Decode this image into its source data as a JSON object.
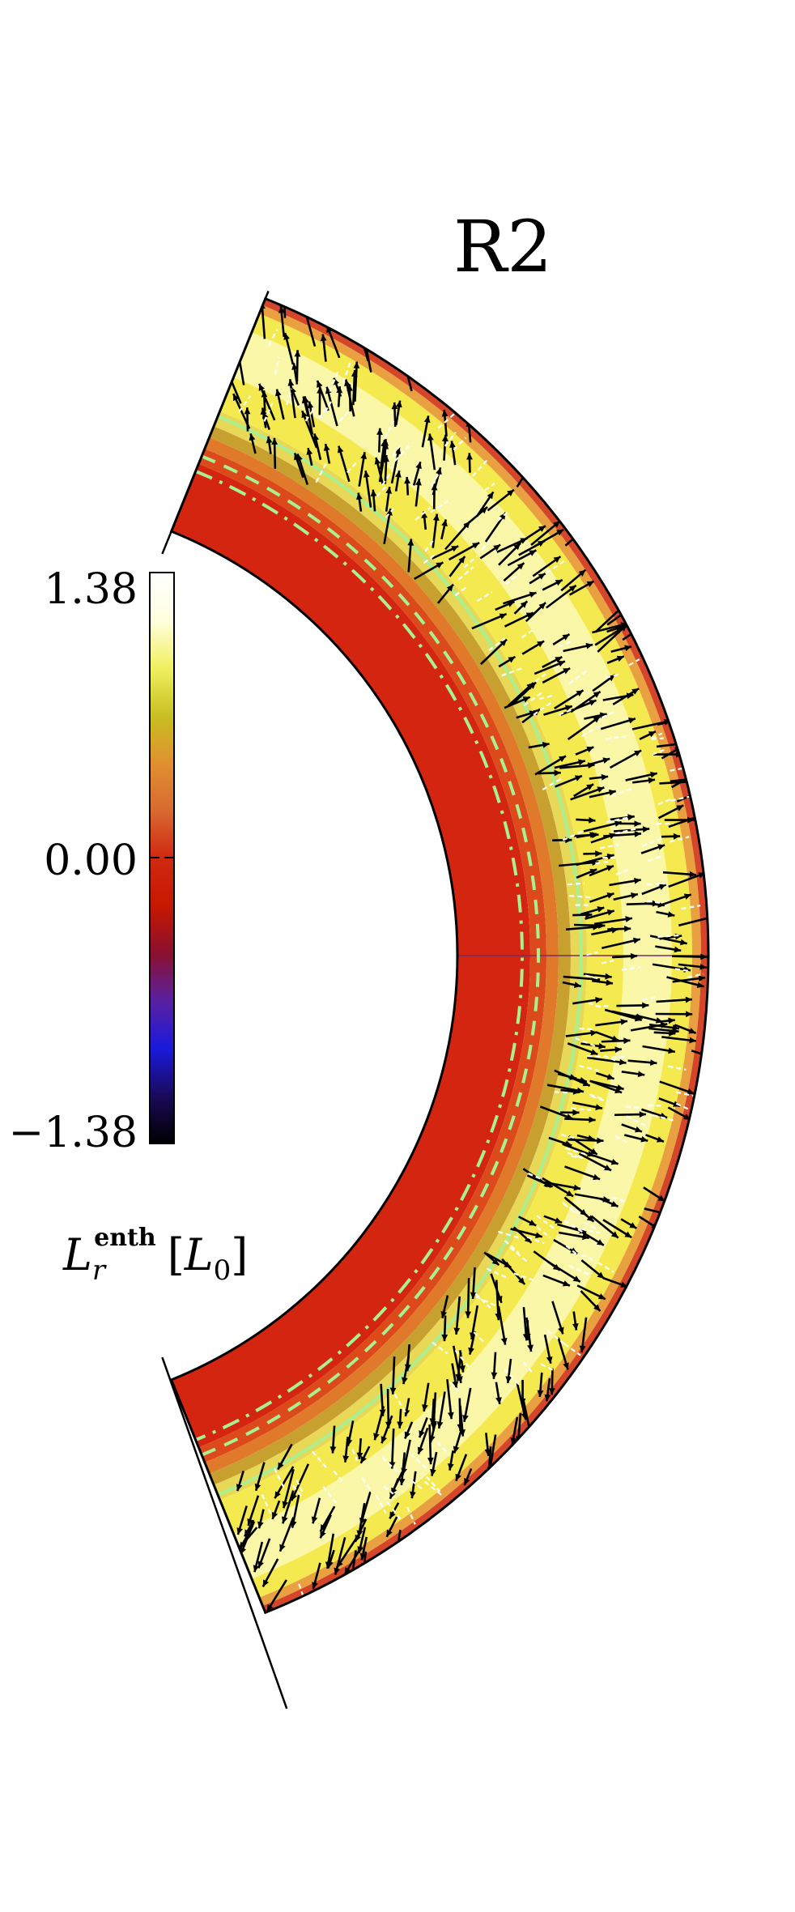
{
  "panel_label": "R2",
  "colorbar": {
    "ticks": [
      "1.38",
      "0.00",
      "−1.38"
    ],
    "quantity": "L",
    "subscript": "r",
    "superscript": "enth",
    "unit_open": "[",
    "unit_symbol": "L",
    "unit_subscript": "0",
    "unit_close": "]",
    "min": -1.38,
    "max": 1.38,
    "stops": [
      "#000000",
      "#1a0a5a",
      "#1a1adc",
      "#5a20a0",
      "#8a1030",
      "#c81800",
      "#d02810",
      "#d86a30",
      "#e09030",
      "#c8c020",
      "#f0f060",
      "#ffffe0",
      "#ffffff"
    ]
  },
  "colors": {
    "inner_region": "#d42511",
    "outer_region": "#f4ea50",
    "transition": "#e07a2a",
    "contour": "#a8f090",
    "arrows": "#000000"
  }
}
